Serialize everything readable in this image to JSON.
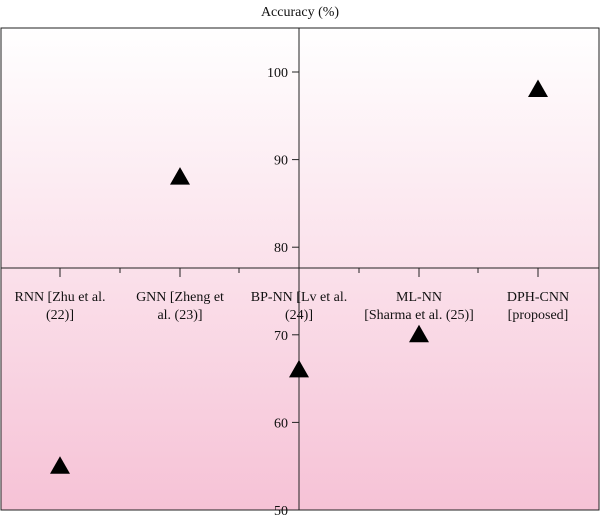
{
  "chart_data": {
    "type": "scatter",
    "title": "Accuracy (%)",
    "xlabel": "",
    "ylabel": "",
    "categories": [
      [
        "RNN [Zhu et al.",
        "(22)]"
      ],
      [
        "GNN [Zheng et",
        "al. (23)]"
      ],
      [
        "BP-NN [Lv et al.",
        "(24)]"
      ],
      [
        "ML-NN",
        "[Sharma et al. (25)]"
      ],
      [
        "DPH-CNN",
        "[proposed]"
      ]
    ],
    "values": [
      55,
      88,
      66,
      70,
      98
    ],
    "ylim": [
      50,
      105
    ],
    "y_ticks": [
      50,
      60,
      70,
      80,
      90,
      100
    ],
    "marker": "triangle",
    "marker_color": "#000000",
    "background_gradient": [
      "#ffffff",
      "#f6c2d6"
    ],
    "grid": false,
    "legend": "none"
  }
}
